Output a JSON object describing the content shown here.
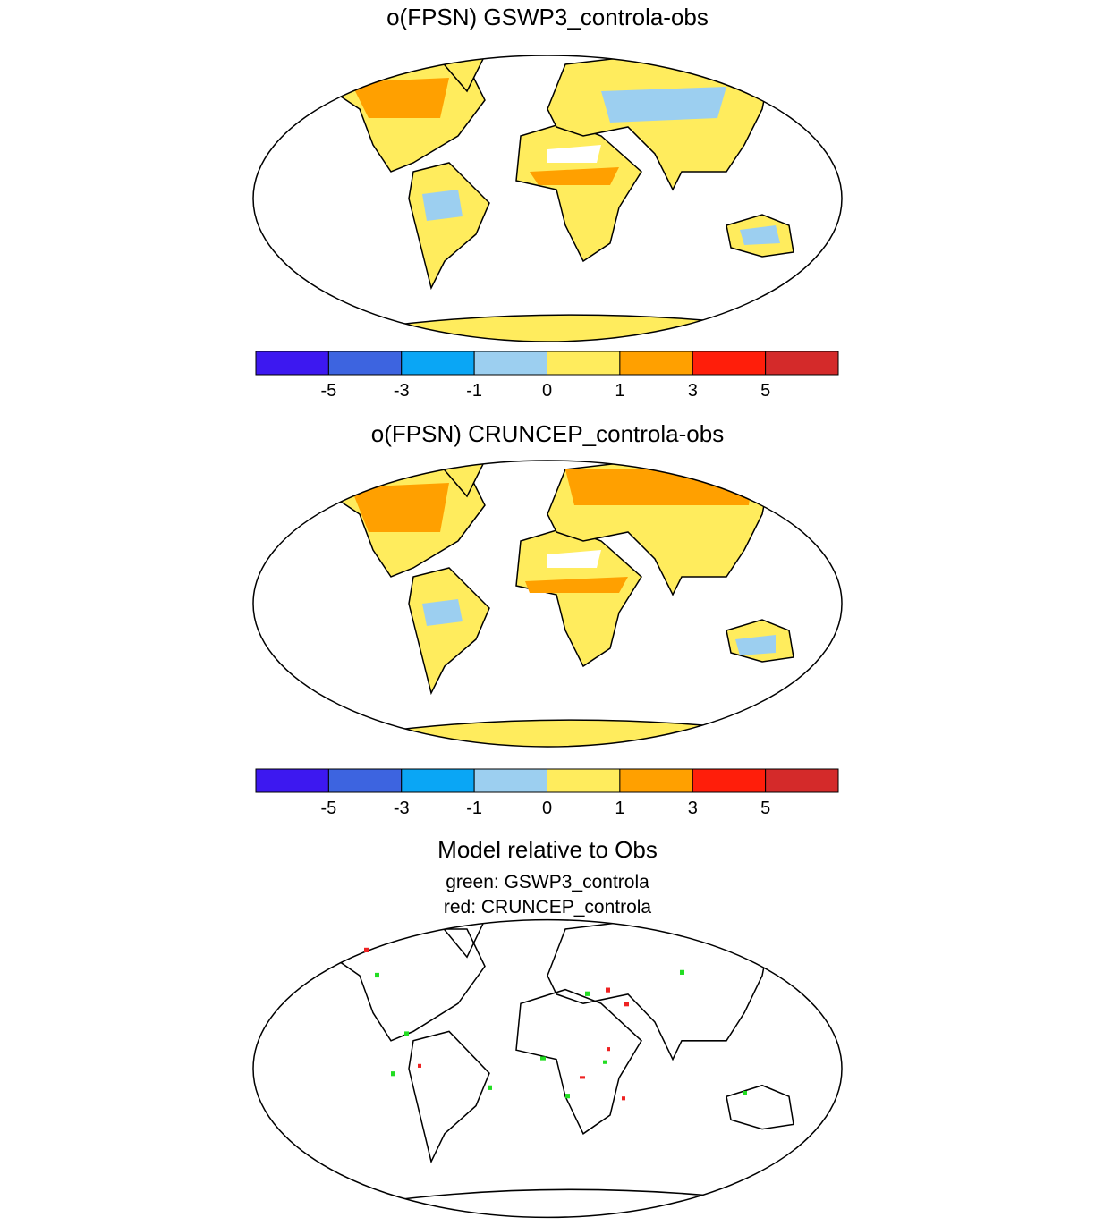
{
  "panels": [
    {
      "title": "o(FPSN) GSWP3_controla-obs"
    },
    {
      "title": "o(FPSN) CRUNCEP_controla-obs"
    },
    {
      "title": "Model relative to Obs",
      "lines": [
        "green: GSWP3_controla",
        "red: CRUNCEP_controla"
      ]
    }
  ],
  "colorbar": {
    "colors": [
      "#3d18f0",
      "#3d64e0",
      "#0aa6f5",
      "#9ccff0",
      "#ffec5d",
      "#ffa000",
      "#ff1e0a",
      "#d42a2a"
    ],
    "ticks": [
      -5,
      -3,
      -1,
      0,
      1,
      3,
      5
    ]
  }
}
